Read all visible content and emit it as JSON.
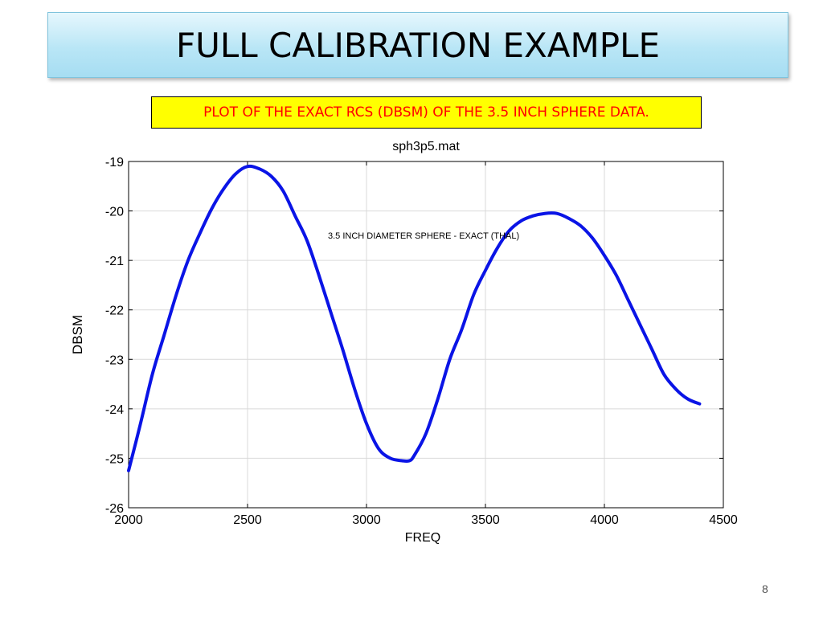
{
  "slide": {
    "title": "FULL CALIBRATION EXAMPLE",
    "subtitle": "PLOT OF THE EXACT RCS (DBSM) OF THE 3.5 INCH SPHERE DATA.",
    "page_number": "8",
    "title_bg_color": "#b9e6f6",
    "subtitle_bg_color": "#ffff00",
    "subtitle_text_color": "#ff0000"
  },
  "chart_data": {
    "type": "line",
    "title": "sph3p5.mat",
    "xlabel": "FREQ",
    "ylabel": "DBSM",
    "xlim": [
      2000,
      4500
    ],
    "ylim": [
      -26,
      -19
    ],
    "xticks": [
      2000,
      2500,
      3000,
      3500,
      4000,
      4500
    ],
    "yticks": [
      -19,
      -20,
      -21,
      -22,
      -23,
      -24,
      -25,
      -26
    ],
    "grid": true,
    "annotation": "3.5 INCH DIAMETER SPHERE - EXACT (THAL)",
    "series": [
      {
        "color": "#0a14e6",
        "x": [
          2000,
          2050,
          2100,
          2150,
          2200,
          2250,
          2300,
          2350,
          2400,
          2450,
          2500,
          2550,
          2600,
          2650,
          2700,
          2750,
          2800,
          2850,
          2900,
          2950,
          3000,
          3050,
          3100,
          3150,
          3180,
          3200,
          3250,
          3300,
          3350,
          3400,
          3450,
          3500,
          3550,
          3600,
          3650,
          3700,
          3750,
          3800,
          3850,
          3900,
          3950,
          4000,
          4050,
          4100,
          4150,
          4200,
          4250,
          4300,
          4350,
          4400
        ],
        "y": [
          -25.25,
          -24.3,
          -23.3,
          -22.5,
          -21.7,
          -21.0,
          -20.45,
          -19.95,
          -19.55,
          -19.25,
          -19.1,
          -19.15,
          -19.3,
          -19.6,
          -20.1,
          -20.6,
          -21.3,
          -22.05,
          -22.8,
          -23.6,
          -24.3,
          -24.8,
          -25.0,
          -25.05,
          -25.05,
          -24.95,
          -24.5,
          -23.8,
          -23.0,
          -22.4,
          -21.7,
          -21.2,
          -20.75,
          -20.4,
          -20.2,
          -20.1,
          -20.05,
          -20.05,
          -20.15,
          -20.3,
          -20.55,
          -20.9,
          -21.3,
          -21.8,
          -22.3,
          -22.8,
          -23.3,
          -23.6,
          -23.8,
          -23.9
        ]
      }
    ]
  }
}
